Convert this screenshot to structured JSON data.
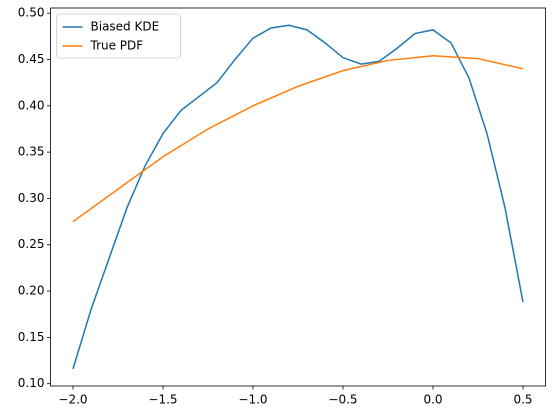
{
  "chart_data": {
    "type": "line",
    "series": [
      {
        "name": "Biased KDE",
        "color": "#1f77b4",
        "x": [
          -2.0,
          -1.9,
          -1.8,
          -1.7,
          -1.6,
          -1.5,
          -1.4,
          -1.3,
          -1.2,
          -1.1,
          -1.0,
          -0.9,
          -0.8,
          -0.7,
          -0.6,
          -0.5,
          -0.4,
          -0.3,
          -0.2,
          -0.1,
          0.0,
          0.1,
          0.2,
          0.3,
          0.4,
          0.5
        ],
        "values": [
          0.116,
          0.18,
          0.235,
          0.29,
          0.335,
          0.37,
          0.395,
          0.41,
          0.425,
          0.45,
          0.473,
          0.484,
          0.487,
          0.482,
          0.468,
          0.452,
          0.445,
          0.448,
          0.462,
          0.478,
          0.482,
          0.468,
          0.43,
          0.37,
          0.29,
          0.188
        ]
      },
      {
        "name": "True PDF",
        "color": "#ff7f0e",
        "x": [
          -2.0,
          -1.75,
          -1.5,
          -1.25,
          -1.0,
          -0.75,
          -0.5,
          -0.25,
          0.0,
          0.25,
          0.5
        ],
        "values": [
          0.275,
          0.31,
          0.345,
          0.375,
          0.4,
          0.421,
          0.438,
          0.449,
          0.454,
          0.451,
          0.44
        ]
      }
    ],
    "xlim": [
      -2.125,
      0.625
    ],
    "ylim": [
      0.0975,
      0.5056
    ],
    "xticks": [
      {
        "value": -2.0,
        "label": "−2.0"
      },
      {
        "value": -1.5,
        "label": "−1.5"
      },
      {
        "value": -1.0,
        "label": "−1.0"
      },
      {
        "value": -0.5,
        "label": "−0.5"
      },
      {
        "value": 0.0,
        "label": "0.0"
      },
      {
        "value": 0.5,
        "label": "0.5"
      }
    ],
    "yticks": [
      {
        "value": 0.1,
        "label": "0.10"
      },
      {
        "value": 0.15,
        "label": "0.15"
      },
      {
        "value": 0.2,
        "label": "0.20"
      },
      {
        "value": 0.25,
        "label": "0.25"
      },
      {
        "value": 0.3,
        "label": "0.30"
      },
      {
        "value": 0.35,
        "label": "0.35"
      },
      {
        "value": 0.4,
        "label": "0.40"
      },
      {
        "value": 0.45,
        "label": "0.45"
      },
      {
        "value": 0.5,
        "label": "0.50"
      }
    ],
    "legend": "upper left"
  }
}
